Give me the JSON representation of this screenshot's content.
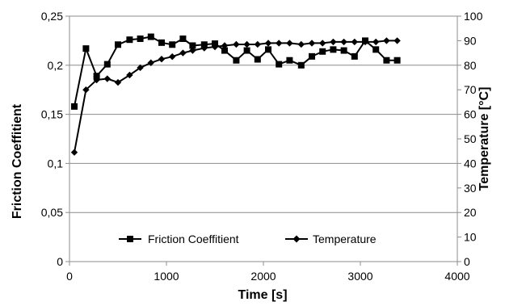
{
  "chart_data": {
    "type": "line",
    "xlabel": "Time [s]",
    "ylabel_left": "Friction Coeffitient",
    "ylabel_right": "Temperature [°C]",
    "xlim": [
      0,
      4000
    ],
    "ylim_left": [
      0,
      0.25
    ],
    "ylim_right": [
      0,
      100
    ],
    "x_ticks": [
      "0",
      "1000",
      "2000",
      "3000",
      "4000"
    ],
    "y_left_ticks": [
      "0",
      "0,05",
      "0,1",
      "0,15",
      "0,2",
      "0,25"
    ],
    "y_right_ticks": [
      "0",
      "10",
      "20",
      "30",
      "40",
      "50",
      "60",
      "70",
      "80",
      "90",
      "100"
    ],
    "grid": "horizontal",
    "legend": "bottom",
    "series": [
      {
        "name": "Friction Coeffitient",
        "axis": "left",
        "marker": "square",
        "color": "#000000",
        "x": [
          50,
          170,
          280,
          390,
          500,
          620,
          730,
          840,
          950,
          1060,
          1170,
          1270,
          1390,
          1500,
          1600,
          1720,
          1830,
          1940,
          2050,
          2160,
          2270,
          2390,
          2500,
          2610,
          2720,
          2830,
          2940,
          3050,
          3160,
          3270,
          3380
        ],
        "values": [
          0.158,
          0.217,
          0.189,
          0.201,
          0.221,
          0.226,
          0.227,
          0.229,
          0.223,
          0.221,
          0.227,
          0.22,
          0.221,
          0.222,
          0.215,
          0.205,
          0.215,
          0.206,
          0.216,
          0.201,
          0.205,
          0.2,
          0.209,
          0.214,
          0.216,
          0.215,
          0.209,
          0.225,
          0.216,
          0.205,
          0.205
        ]
      },
      {
        "name": "Temperature",
        "axis": "right",
        "marker": "diamond",
        "color": "#000000",
        "x": [
          50,
          170,
          280,
          390,
          500,
          620,
          730,
          840,
          950,
          1060,
          1170,
          1270,
          1390,
          1500,
          1600,
          1720,
          1830,
          1940,
          2050,
          2160,
          2270,
          2390,
          2500,
          2610,
          2720,
          2830,
          2940,
          3050,
          3160,
          3270,
          3380
        ],
        "values": [
          44.5,
          70,
          74,
          74.5,
          73,
          76,
          79,
          81,
          82.5,
          83.5,
          85,
          86,
          87,
          87.5,
          88,
          88.5,
          88.5,
          88.5,
          89,
          89,
          89,
          88.5,
          89,
          89,
          89.5,
          89.5,
          89.5,
          89.5,
          89.5,
          90,
          90
        ]
      }
    ]
  }
}
